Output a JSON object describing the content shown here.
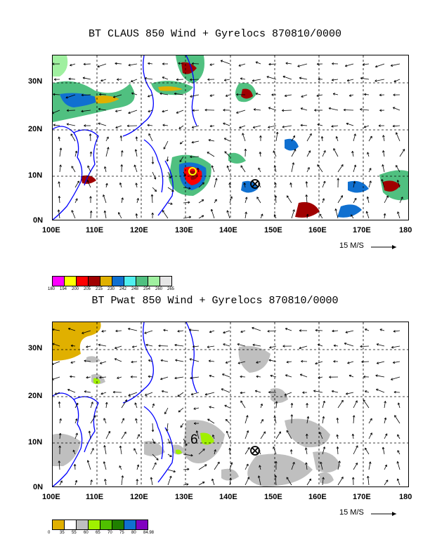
{
  "panels": [
    {
      "id": "claus",
      "title": "BT CLAUS 850 Wind + Gyrelocs 870810/0000",
      "lat_labels": [
        "30N",
        "20N",
        "10N",
        "0N"
      ],
      "lon_labels": [
        "100E",
        "110E",
        "120E",
        "130E",
        "140E",
        "150E",
        "160E",
        "170E",
        "180"
      ],
      "scale_label": "15 M/S",
      "legend": {
        "colors": [
          "#ff00ff",
          "#ffff00",
          "#ff0000",
          "#a00000",
          "#e0b000",
          "#1070d0",
          "#50f0f0",
          "#50c080",
          "#a0f0a0",
          "#e6e6e6"
        ],
        "labels": [
          "180",
          "194",
          "200",
          "205",
          "215",
          "230",
          "242",
          "248",
          "254",
          "260",
          "265"
        ]
      }
    },
    {
      "id": "pwat",
      "title": "BT Pwat 850 Wind + Gyrelocs 870810/0000",
      "lat_labels": [
        "30N",
        "20N",
        "10N",
        "0N"
      ],
      "lon_labels": [
        "100E",
        "110E",
        "120E",
        "130E",
        "140E",
        "150E",
        "160E",
        "170E",
        "180"
      ],
      "scale_label": "15 M/S",
      "legend": {
        "colors": [
          "#e0b000",
          "#ffffff",
          "#bfbfbf",
          "#a0f000",
          "#50c000",
          "#208000",
          "#1070d0",
          "#8000c0"
        ],
        "labels": [
          "0",
          "35",
          "55",
          "60",
          "65",
          "70",
          "75",
          "80",
          "84.98"
        ]
      },
      "annotation": "6"
    }
  ],
  "colors": {
    "coast": "#0000ff",
    "grid": "#000000"
  }
}
